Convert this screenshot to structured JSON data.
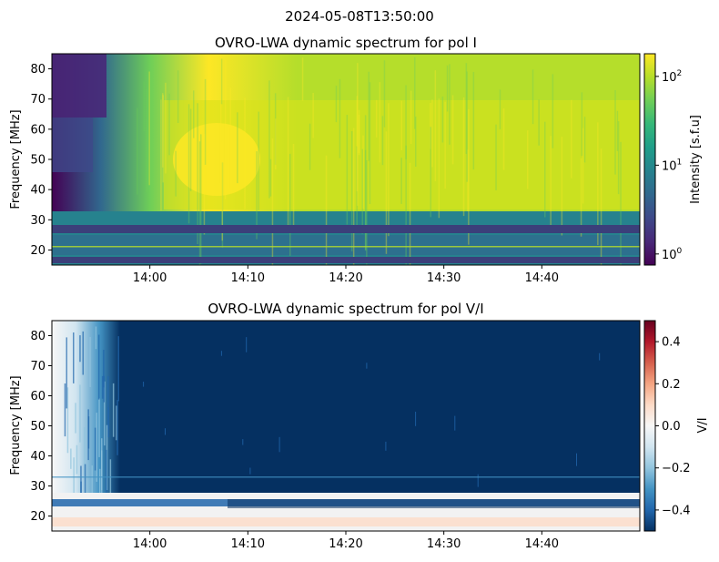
{
  "figure": {
    "suptitle": "2024-05-08T13:50:00"
  },
  "colors": {
    "viridis": [
      "#440154",
      "#482878",
      "#3e4989",
      "#31688e",
      "#26828e",
      "#1f9e89",
      "#35b779",
      "#6ece58",
      "#b5de2b",
      "#fde725"
    ],
    "rdbu_r": [
      "#053061",
      "#2166ac",
      "#4393c3",
      "#92c5de",
      "#d1e5f0",
      "#f7f7f7",
      "#fddbc7",
      "#f4a582",
      "#d6604d",
      "#b2182b",
      "#67001f"
    ],
    "rfi_band": "#3b3f7a"
  },
  "chart_data": [
    {
      "type": "heatmap",
      "title": "OVRO-LWA dynamic spectrum for pol I",
      "xlabel": "",
      "ylabel": "Frequency [MHz]",
      "x_range": [
        "13:50",
        "14:50"
      ],
      "y_range_mhz": [
        15,
        85
      ],
      "x_ticks": [
        "14:00",
        "14:10",
        "14:20",
        "14:30",
        "14:40"
      ],
      "y_ticks": [
        20,
        30,
        40,
        50,
        60,
        70,
        80
      ],
      "colorbar": {
        "label": "Intensity [s.f.u]",
        "scale": "log",
        "range": [
          0.75,
          180
        ],
        "cmap": "viridis",
        "ticks": [
          {
            "base": "10",
            "exp": "0",
            "value": 1
          },
          {
            "base": "10",
            "exp": "1",
            "value": 10
          },
          {
            "base": "10",
            "exp": "2",
            "value": 100
          }
        ]
      },
      "rfi_bands_mhz": [
        [
          25.5,
          27.5
        ],
        [
          15,
          17
        ]
      ],
      "intensity_profile": [
        {
          "time": "13:50",
          "value": 1
        },
        {
          "time": "13:55",
          "value": 4
        },
        {
          "time": "14:00",
          "value": 40
        },
        {
          "time": "14:06",
          "value": 170
        },
        {
          "time": "14:15",
          "value": 80
        },
        {
          "time": "14:25",
          "value": 90
        },
        {
          "time": "14:35",
          "value": 120
        },
        {
          "time": "14:45",
          "value": 130
        }
      ]
    },
    {
      "type": "heatmap",
      "title": "OVRO-LWA dynamic spectrum for pol V/I",
      "xlabel": "",
      "ylabel": "Frequency [MHz]",
      "x_range": [
        "13:50",
        "14:50"
      ],
      "y_range_mhz": [
        15,
        85
      ],
      "x_ticks": [
        "14:00",
        "14:10",
        "14:20",
        "14:30",
        "14:40"
      ],
      "y_ticks": [
        20,
        30,
        40,
        50,
        60,
        70,
        80
      ],
      "colorbar": {
        "label": "V/I",
        "scale": "linear",
        "range": [
          -0.5,
          0.5
        ],
        "cmap": "RdBu_r",
        "ticks": [
          "−0.4",
          "−0.2",
          "0.0",
          "0.2",
          "0.4"
        ],
        "tick_values": [
          -0.4,
          -0.2,
          0.0,
          0.2,
          0.4
        ]
      },
      "dominant_value": -0.45,
      "low_freq_band_mhz": [
        15,
        28
      ]
    }
  ]
}
